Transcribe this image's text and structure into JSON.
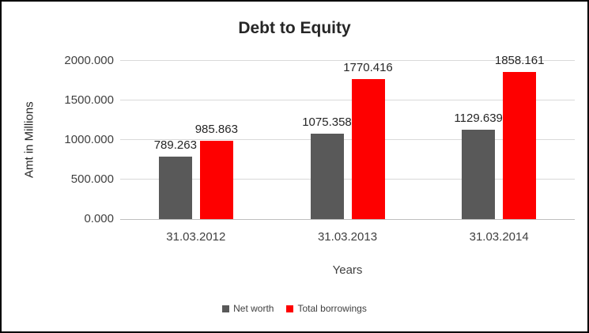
{
  "chart_data": {
    "type": "bar",
    "title": "Debt to Equity",
    "xlabel": "Years",
    "ylabel": "Amt in Millions",
    "categories": [
      "31.03.2012",
      "31.03.2013",
      "31.03.2014"
    ],
    "series": [
      {
        "name": "Net worth",
        "color": "#595959",
        "values": [
          789.263,
          1075.358,
          1129.639
        ]
      },
      {
        "name": "Total borrowings",
        "color": "#fe0000",
        "values": [
          985.863,
          1770.416,
          1858.161
        ]
      }
    ],
    "data_labels": [
      [
        "789.263",
        "1075.358",
        "1129.639"
      ],
      [
        "985.863",
        "1770.416",
        "1858.161"
      ]
    ],
    "ylim": [
      0,
      2000
    ],
    "y_ticks": [
      "0.000",
      "500.000",
      "1000.000",
      "1500.000",
      "2000.000"
    ],
    "grid": true,
    "legend_position": "bottom"
  }
}
